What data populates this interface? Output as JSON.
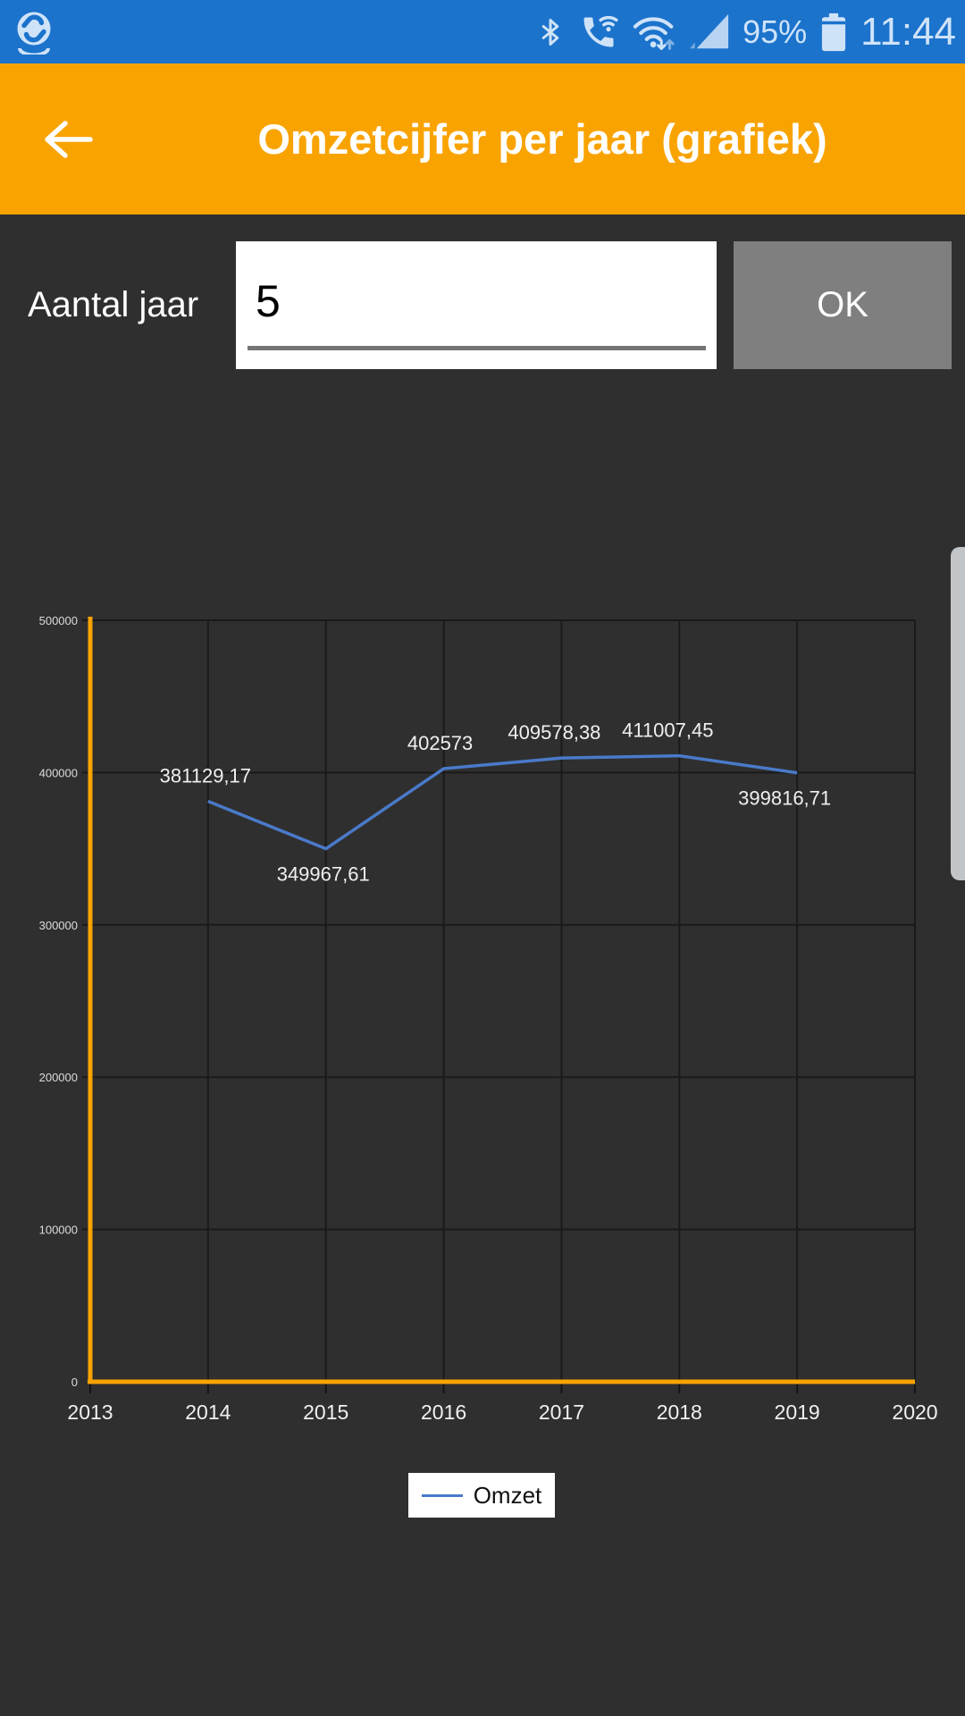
{
  "status_bar": {
    "time": "11:44",
    "battery": "95%",
    "icons": [
      "app-logo",
      "bluetooth",
      "wifi-calling",
      "wifi-updown",
      "signal-strength",
      "battery"
    ]
  },
  "header": {
    "back_icon": "back-arrow",
    "title": "Omzetcijfer per jaar (grafiek)"
  },
  "form": {
    "label": "Aantal jaar",
    "value": "5",
    "ok": "OK"
  },
  "chart_data": {
    "type": "line",
    "title": "",
    "x": [
      2014,
      2015,
      2016,
      2017,
      2018,
      2019
    ],
    "series": [
      {
        "name": "Omzet",
        "values": [
          381129.17,
          349967.61,
          402573,
          409578.38,
          411007.45,
          399816.71
        ]
      }
    ],
    "point_labels": [
      "381129,17",
      "349967,61",
      "402573",
      "409578,38",
      "411007,45",
      "399816,71"
    ],
    "point_label_side": [
      "above",
      "below",
      "above",
      "above",
      "above",
      "below"
    ],
    "x_ticks": [
      2013,
      2014,
      2015,
      2016,
      2017,
      2018,
      2019,
      2020
    ],
    "y_ticks": [
      0,
      100000,
      200000,
      300000,
      400000,
      500000
    ],
    "xlim": [
      2013,
      2020
    ],
    "ylim": [
      0,
      500000
    ],
    "grid": true,
    "legend": [
      "Omzet"
    ],
    "legend_position": "bottom",
    "colors": {
      "line": "#4a7ac9",
      "axis": "#f9a300",
      "grid": "#1a1a1a",
      "label": "#f0f0f0"
    }
  }
}
